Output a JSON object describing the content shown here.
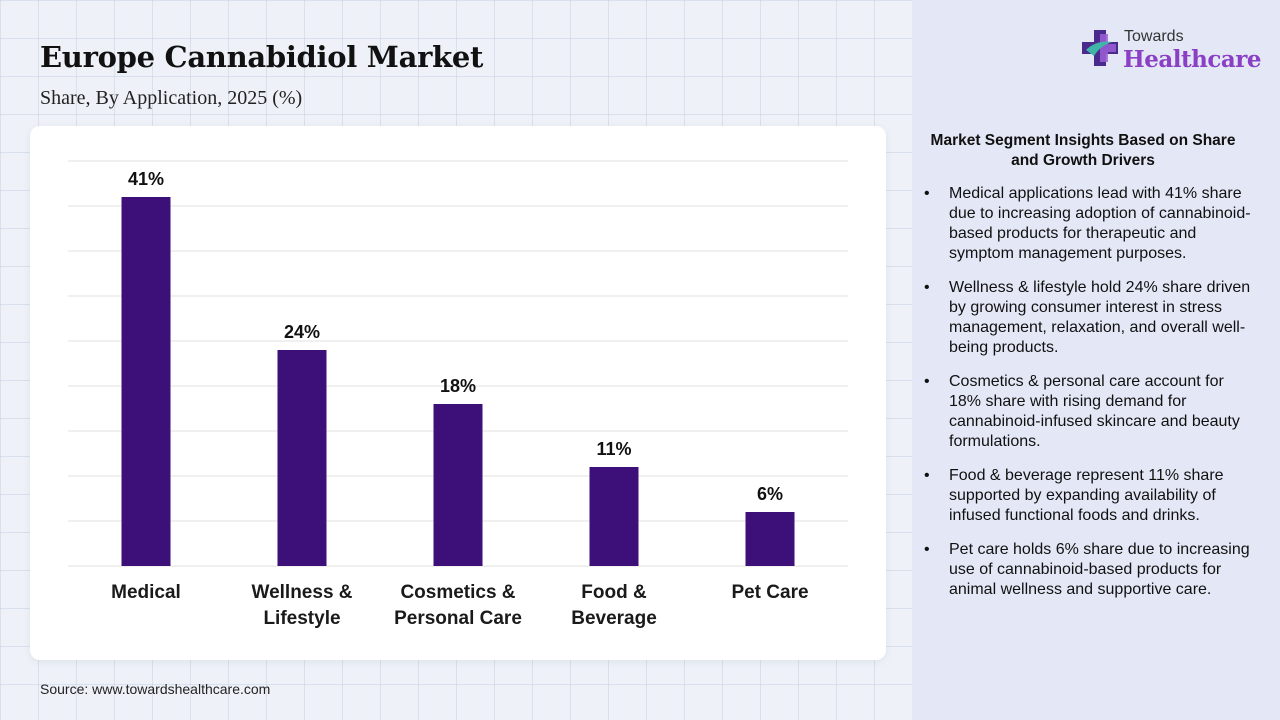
{
  "header": {
    "title": "Europe Cannabidiol Market",
    "subtitle": "Share, By Application, 2025 (%)"
  },
  "logo": {
    "top_text": "Towards",
    "main_text": "Healthcare",
    "icon": "medical-cross-icon",
    "colors": {
      "text": "#8a3fc4",
      "cross_dark": "#4a2a8c",
      "cross_light": "#9b5fd6",
      "cross_teal": "#3fb6a8"
    }
  },
  "chart_data": {
    "type": "bar",
    "categories": [
      "Medical",
      "Wellness & Lifestyle",
      "Cosmetics & Personal Care",
      "Food & Beverage",
      "Pet Care"
    ],
    "category_lines": [
      [
        "Medical"
      ],
      [
        "Wellness &",
        "Lifestyle"
      ],
      [
        "Cosmetics &",
        "Personal Care"
      ],
      [
        "Food &",
        "Beverage"
      ],
      [
        "Pet Care"
      ]
    ],
    "values": [
      41,
      24,
      18,
      11,
      6
    ],
    "data_labels": [
      "41%",
      "24%",
      "18%",
      "11%",
      "6%"
    ],
    "ylim": [
      0,
      45
    ],
    "grid": true,
    "bar_color": "#3d0f78",
    "gridline_color": "#e2e2e2"
  },
  "insights": {
    "title": "Market Segment Insights Based on Share and Growth Drivers",
    "bullet": "•",
    "items": [
      "Medical applications lead with 41% share due to increasing adoption of cannabinoid-based products for therapeutic and symptom management purposes.",
      "Wellness & lifestyle hold 24% share driven by growing consumer interest in stress management, relaxation, and overall well-being products.",
      "Cosmetics & personal care account for 18% share with rising demand for cannabinoid-infused skincare and beauty formulations.",
      "Food & beverage represent 11% share supported by expanding availability of infused functional foods and drinks.",
      "Pet care holds 6% share due to increasing use of cannabinoid-based products for animal wellness and supportive care."
    ]
  },
  "footer": {
    "source": "Source: www.towardshealthcare.com"
  }
}
